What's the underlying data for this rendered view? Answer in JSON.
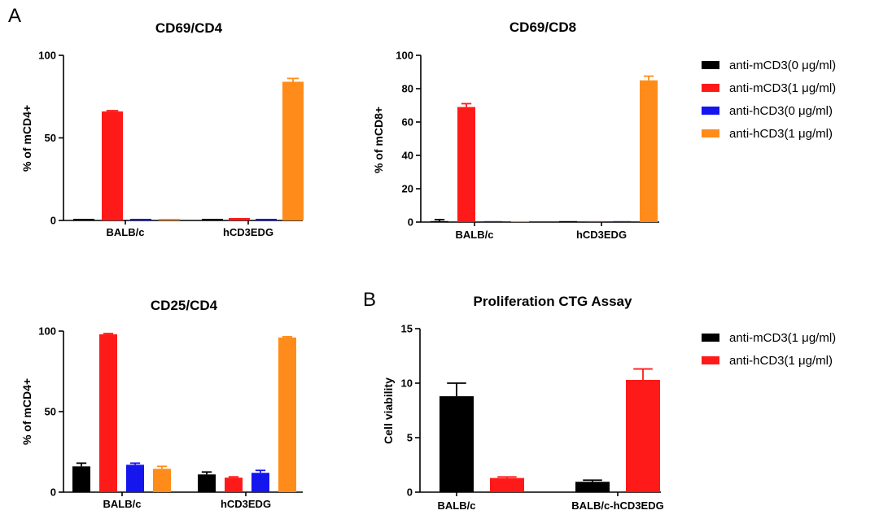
{
  "panel_labels": [
    "A",
    "B"
  ],
  "chart_data": [
    {
      "id": "cd69-cd4",
      "type": "bar",
      "title": "CD69/CD4",
      "ylabel": "% of mCD4+",
      "xlabel": "",
      "ylim": [
        0,
        100
      ],
      "yticks": [
        0,
        50,
        100
      ],
      "categories": [
        "BALB/c",
        "hCD3EDG"
      ],
      "series": [
        {
          "name": "anti-mCD3(0 μg/ml)",
          "color": "#000000",
          "values": [
            1,
            1
          ],
          "errors": [
            0,
            0
          ]
        },
        {
          "name": "anti-mCD3(1 μg/ml)",
          "color": "#ff1a1a",
          "values": [
            66,
            1.5
          ],
          "errors": [
            0.5,
            0
          ]
        },
        {
          "name": "anti-hCD3(0 μg/ml)",
          "color": "#1515ee",
          "values": [
            1,
            1
          ],
          "errors": [
            0,
            0
          ]
        },
        {
          "name": "anti-hCD3(1 μg/ml)",
          "color": "#ff8c1a",
          "values": [
            1,
            84
          ],
          "errors": [
            0,
            2
          ]
        }
      ]
    },
    {
      "id": "cd69-cd8",
      "type": "bar",
      "title": "CD69/CD8",
      "ylabel": "% of mCD8+",
      "xlabel": "",
      "ylim": [
        0,
        100
      ],
      "yticks": [
        0,
        20,
        40,
        60,
        80,
        100
      ],
      "categories": [
        "BALB/c",
        "hCD3EDG"
      ],
      "series": [
        {
          "name": "anti-mCD3(0 μg/ml)",
          "color": "#000000",
          "values": [
            0.5,
            0.3
          ],
          "errors": [
            1,
            0
          ]
        },
        {
          "name": "anti-mCD3(1 μg/ml)",
          "color": "#ff1a1a",
          "values": [
            69,
            0.5
          ],
          "errors": [
            2,
            0
          ]
        },
        {
          "name": "anti-hCD3(0 μg/ml)",
          "color": "#1515ee",
          "values": [
            0.5,
            0.5
          ],
          "errors": [
            0,
            0
          ]
        },
        {
          "name": "anti-hCD3(1 μg/ml)",
          "color": "#ff8c1a",
          "values": [
            0.5,
            85
          ],
          "errors": [
            0,
            2.5
          ]
        }
      ],
      "legend": {
        "position": "right",
        "entries": [
          {
            "label": "anti-mCD3(0 μg/ml)",
            "color": "#000000"
          },
          {
            "label": "anti-mCD3(1 μg/ml)",
            "color": "#ff1a1a"
          },
          {
            "label": "anti-hCD3(0 μg/ml)",
            "color": "#1515ee"
          },
          {
            "label": "anti-hCD3(1 μg/ml)",
            "color": "#ff8c1a"
          }
        ]
      }
    },
    {
      "id": "cd25-cd4",
      "type": "bar",
      "title": "CD25/CD4",
      "ylabel": "% of mCD4+",
      "xlabel": "",
      "ylim": [
        0,
        100
      ],
      "yticks": [
        0,
        50,
        100
      ],
      "categories": [
        "BALB/c",
        "hCD3EDG"
      ],
      "series": [
        {
          "name": "anti-mCD3(0 μg/ml)",
          "color": "#000000",
          "values": [
            16,
            11
          ],
          "errors": [
            2,
            1.5
          ]
        },
        {
          "name": "anti-mCD3(1 μg/ml)",
          "color": "#ff1a1a",
          "values": [
            98,
            9
          ],
          "errors": [
            0.5,
            0.5
          ]
        },
        {
          "name": "anti-hCD3(0 μg/ml)",
          "color": "#1515ee",
          "values": [
            17,
            12
          ],
          "errors": [
            1,
            1.5
          ]
        },
        {
          "name": "anti-hCD3(1 μg/ml)",
          "color": "#ff8c1a",
          "values": [
            14.5,
            96
          ],
          "errors": [
            1.5,
            0.5
          ]
        }
      ]
    },
    {
      "id": "ctg",
      "type": "bar",
      "title": "Proliferation CTG Assay",
      "ylabel": "Cell viability",
      "xlabel": "",
      "ylim": [
        0,
        15
      ],
      "yticks": [
        0,
        5,
        10,
        15
      ],
      "categories": [
        "BALB/c",
        "BALB/c-hCD3EDG"
      ],
      "series": [
        {
          "name": "anti-mCD3(1 μg/ml)",
          "color": "#000000",
          "values": [
            8.8,
            0.95
          ],
          "errors": [
            1.2,
            0.15
          ]
        },
        {
          "name": "anti-hCD3(1 μg/ml)",
          "color": "#ff1a1a",
          "values": [
            1.3,
            10.3
          ],
          "errors": [
            0.1,
            1
          ]
        }
      ],
      "legend": {
        "position": "right",
        "entries": [
          {
            "label": "anti-mCD3(1 μg/ml)",
            "color": "#000000"
          },
          {
            "label": "anti-hCD3(1 μg/ml)",
            "color": "#ff1a1a"
          }
        ]
      }
    }
  ]
}
